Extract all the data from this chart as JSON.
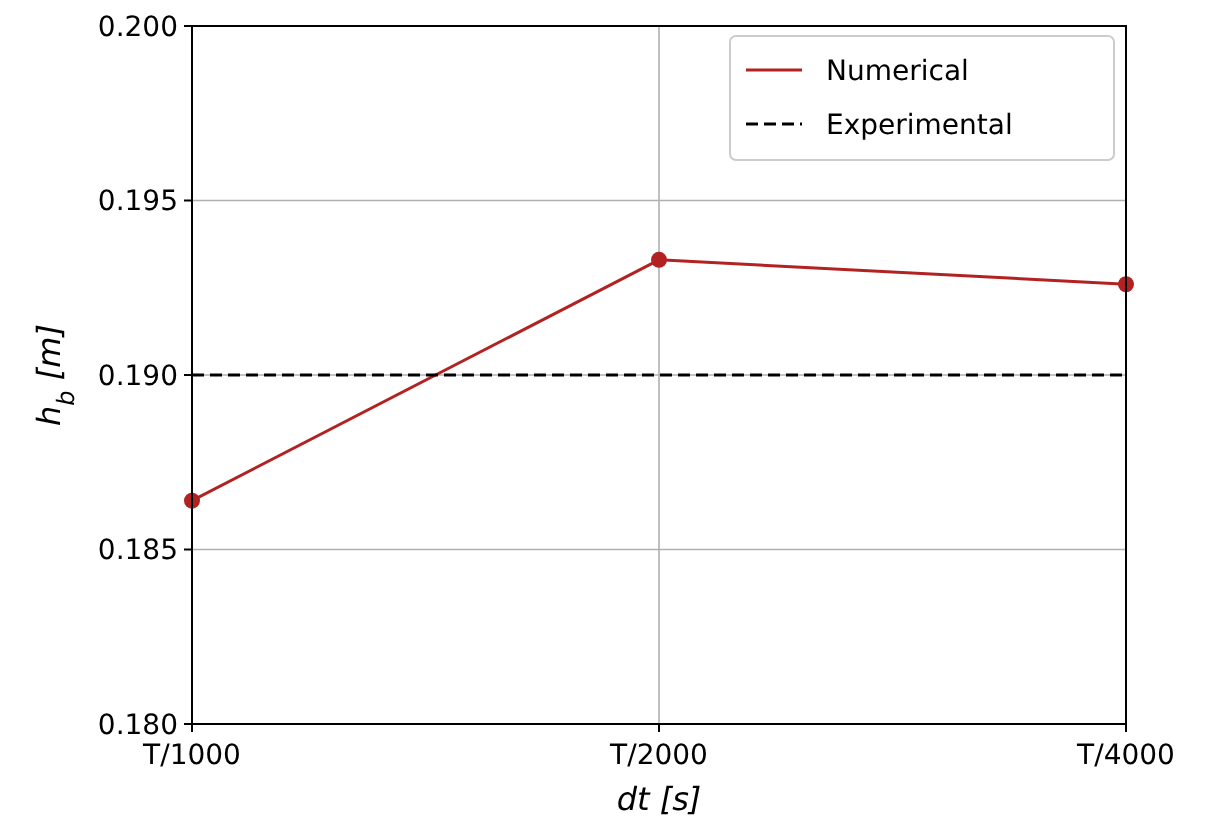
{
  "chart_data": {
    "type": "line",
    "xlabel": "dt [s]",
    "ylabel": "h$_{b}$ [m]",
    "categories": [
      "T/1000",
      "T/2000",
      "T/4000"
    ],
    "series": [
      {
        "name": "Numerical",
        "color": "#b22222",
        "values": [
          0.1864,
          0.1933,
          0.1926
        ],
        "marker": "circle",
        "line_style": "solid"
      },
      {
        "name": "Experimental",
        "color": "#000000",
        "values": [
          0.19,
          0.19,
          0.19
        ],
        "marker": "none",
        "line_style": "dashed"
      }
    ],
    "ylim": [
      0.18,
      0.2
    ],
    "yticks": [
      {
        "value": 0.18,
        "label": "0.180"
      },
      0.185,
      {
        "value": 0.19,
        "label": "0.190"
      },
      0.195,
      {
        "value": 0.2,
        "label": "0.200"
      }
    ],
    "grid": true,
    "legend": "top right"
  }
}
